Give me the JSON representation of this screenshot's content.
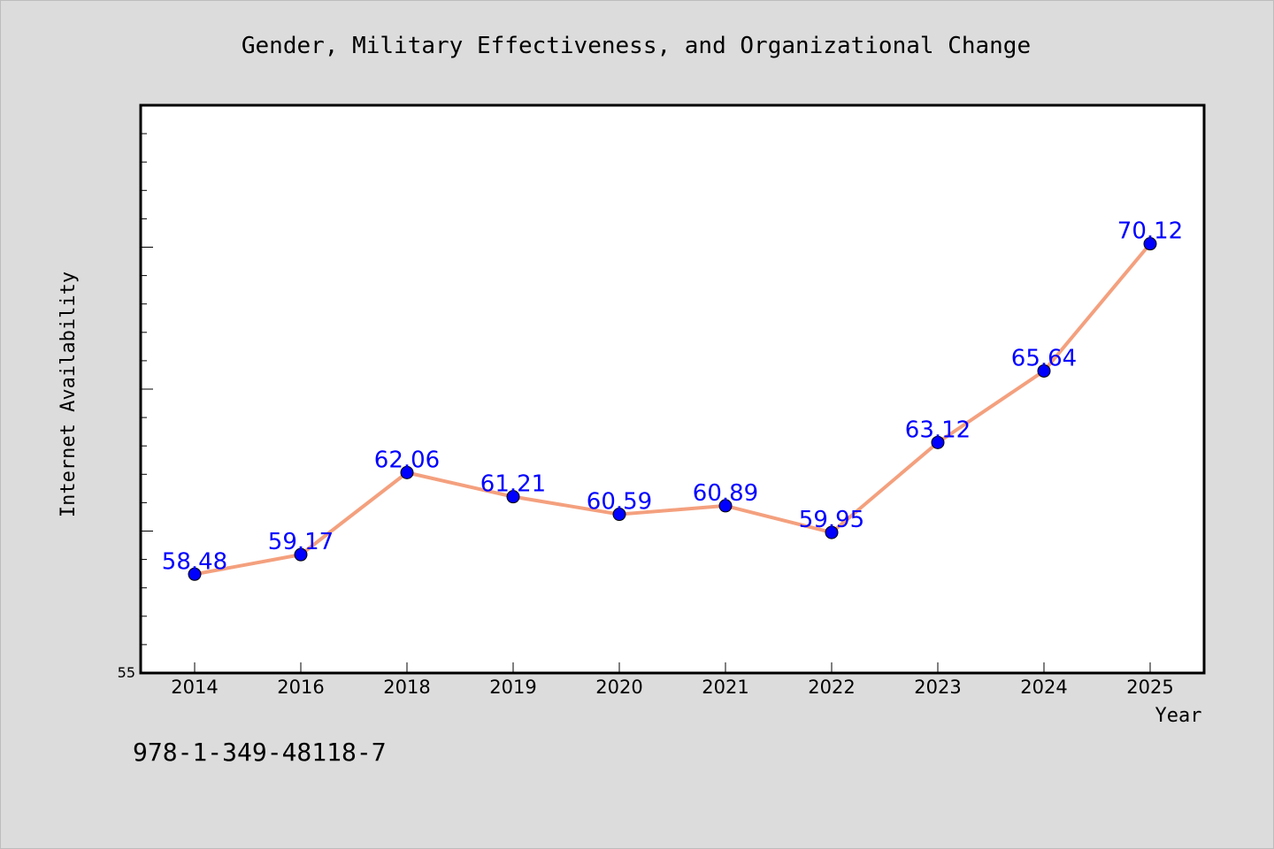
{
  "chart_data": {
    "type": "line",
    "title": "Gender, Military Effectiveness, and Organizational Change",
    "xlabel": "Year",
    "ylabel": "Internet Availability",
    "categories": [
      "2014",
      "2016",
      "2018",
      "2019",
      "2020",
      "2021",
      "2022",
      "2023",
      "2024",
      "2025"
    ],
    "series": [
      {
        "values": [
          58.48,
          59.17,
          62.06,
          61.21,
          60.59,
          60.89,
          59.95,
          63.12,
          65.64,
          70.12
        ],
        "line_color": "#f4a07e",
        "marker_color": "#0000ff",
        "label_color": "#0000ff"
      }
    ],
    "data_labels": [
      "58.48",
      "59.17",
      "62.06",
      "61.21",
      "60.59",
      "60.89",
      "59.95",
      "63.12",
      "65.64",
      "70.12"
    ],
    "ylim": [
      55,
      75
    ],
    "y_tick_labels": [
      "55"
    ],
    "grid": false,
    "background": "#ffffff"
  },
  "footer": {
    "isbn": "978-1-349-48118-7"
  }
}
